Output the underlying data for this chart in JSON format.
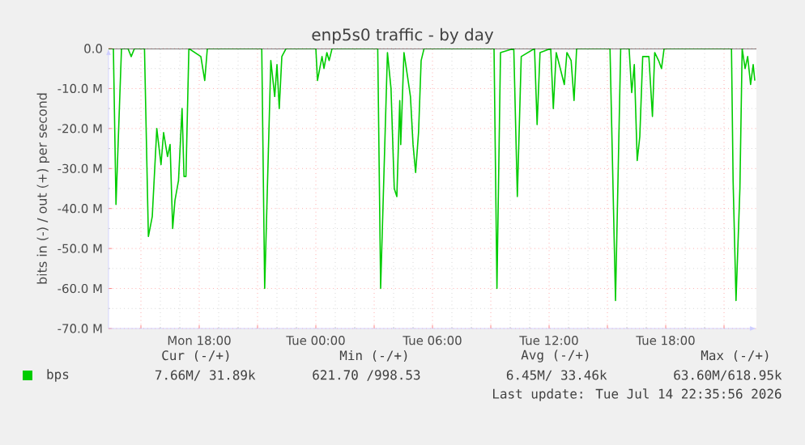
{
  "chart_data": {
    "type": "line",
    "title": "enp5s0 traffic - by day",
    "ylabel": "bits in (-) / out (+) per second",
    "x": [
      "2026-07-13T13:20",
      "2026-07-13T13:35",
      "2026-07-13T13:43",
      "2026-07-13T14:00",
      "2026-07-13T14:20",
      "2026-07-13T14:30",
      "2026-07-13T14:40",
      "2026-07-13T15:11",
      "2026-07-13T15:23",
      "2026-07-13T15:35",
      "2026-07-13T15:49",
      "2026-07-13T16:02",
      "2026-07-13T16:10",
      "2026-07-13T16:22",
      "2026-07-13T16:30",
      "2026-07-13T16:38",
      "2026-07-13T16:45",
      "2026-07-13T16:56",
      "2026-07-13T17:07",
      "2026-07-13T17:13",
      "2026-07-13T17:19",
      "2026-07-13T17:28",
      "2026-07-13T18:05",
      "2026-07-13T18:17",
      "2026-07-13T18:25",
      "2026-07-13T21:13",
      "2026-07-13T21:22",
      "2026-07-13T21:41",
      "2026-07-13T21:53",
      "2026-07-13T22:00",
      "2026-07-13T22:07",
      "2026-07-13T22:15",
      "2026-07-13T22:28",
      "2026-07-14T00:00",
      "2026-07-14T00:05",
      "2026-07-14T00:19",
      "2026-07-14T00:25",
      "2026-07-14T00:34",
      "2026-07-14T00:41",
      "2026-07-14T00:50",
      "2026-07-14T03:11",
      "2026-07-14T03:20",
      "2026-07-14T03:41",
      "2026-07-14T03:52",
      "2026-07-14T04:02",
      "2026-07-14T04:10",
      "2026-07-14T04:19",
      "2026-07-14T04:22",
      "2026-07-14T04:32",
      "2026-07-14T04:43",
      "2026-07-14T04:52",
      "2026-07-14T05:00",
      "2026-07-14T05:08",
      "2026-07-14T05:17",
      "2026-07-14T05:25",
      "2026-07-14T05:34",
      "2026-07-14T09:10",
      "2026-07-14T09:19",
      "2026-07-14T09:30",
      "2026-07-14T10:11",
      "2026-07-14T10:22",
      "2026-07-14T10:34",
      "2026-07-14T11:15",
      "2026-07-14T11:23",
      "2026-07-14T11:32",
      "2026-07-14T12:05",
      "2026-07-14T12:13",
      "2026-07-14T12:22",
      "2026-07-14T12:47",
      "2026-07-14T12:55",
      "2026-07-14T13:08",
      "2026-07-14T13:17",
      "2026-07-14T13:25",
      "2026-07-14T15:08",
      "2026-07-14T15:25",
      "2026-07-14T15:41",
      "2026-07-14T16:07",
      "2026-07-14T16:15",
      "2026-07-14T16:23",
      "2026-07-14T16:32",
      "2026-07-14T16:40",
      "2026-07-14T16:49",
      "2026-07-14T17:08",
      "2026-07-14T17:19",
      "2026-07-14T17:26",
      "2026-07-14T17:38",
      "2026-07-14T17:47",
      "2026-07-14T17:55",
      "2026-07-14T21:23",
      "2026-07-14T21:28",
      "2026-07-14T21:37",
      "2026-07-14T21:49",
      "2026-07-14T21:56",
      "2026-07-14T22:05",
      "2026-07-14T22:13",
      "2026-07-14T22:22",
      "2026-07-14T22:30",
      "2026-07-14T22:35"
    ],
    "series": [
      {
        "name": "bps",
        "color": "#00cc00",
        "values": [
          0,
          0,
          -39,
          0,
          0,
          -2,
          0,
          0,
          -47,
          -42,
          -20,
          -29,
          -21,
          -27,
          -24,
          -45,
          -38,
          -33,
          -15,
          -32,
          -32,
          0,
          -2,
          -8,
          0,
          0,
          -60,
          -3,
          -12,
          -4,
          -15,
          -2,
          0,
          0,
          -8,
          -2,
          -5,
          -1,
          -3,
          0,
          0,
          -60,
          -1,
          -10,
          -35,
          -37,
          -13,
          -24,
          -1,
          -7,
          -12,
          -24,
          -31,
          -21,
          -3,
          0,
          0,
          -60,
          -1,
          0,
          -37,
          -2,
          0,
          -19,
          -1,
          0,
          -15,
          -1,
          -9,
          -1,
          -3,
          -13,
          0,
          0,
          -63,
          0,
          0,
          -11,
          -4,
          -28,
          -22,
          -2,
          -2,
          -17,
          -1,
          -3,
          -5,
          0,
          0,
          -33,
          -63,
          -35,
          0,
          -5,
          -2,
          -9,
          -4,
          -8
        ]
      }
    ],
    "xlim": [
      "2026-07-13T13:20",
      "2026-07-14T22:40"
    ],
    "xticks": [
      {
        "value": "2026-07-13T15:00",
        "label": null
      },
      {
        "value": "2026-07-13T18:00",
        "label": "Mon 18:00"
      },
      {
        "value": "2026-07-13T21:00",
        "label": null
      },
      {
        "value": "2026-07-14T00:00",
        "label": "Tue 00:00"
      },
      {
        "value": "2026-07-14T03:00",
        "label": null
      },
      {
        "value": "2026-07-14T06:00",
        "label": "Tue 06:00"
      },
      {
        "value": "2026-07-14T09:00",
        "label": null
      },
      {
        "value": "2026-07-14T12:00",
        "label": "Tue 12:00"
      },
      {
        "value": "2026-07-14T15:00",
        "label": null
      },
      {
        "value": "2026-07-14T18:00",
        "label": "Tue 18:00"
      },
      {
        "value": "2026-07-14T21:00",
        "label": null
      }
    ],
    "ylim": [
      -70,
      0
    ],
    "yticks": [
      {
        "value": -70,
        "label": "-70.0 M"
      },
      {
        "value": -60,
        "label": "-60.0 M"
      },
      {
        "value": -50,
        "label": "-50.0 M"
      },
      {
        "value": -40,
        "label": "-40.0 M"
      },
      {
        "value": -30,
        "label": "-30.0 M"
      },
      {
        "value": -20,
        "label": "-20.0 M"
      },
      {
        "value": -10,
        "label": "-10.0 M"
      },
      {
        "value": 0,
        "label": "0.0"
      }
    ],
    "ref_lines": [
      {
        "axis": "y",
        "value": 0,
        "color": "#000000"
      }
    ],
    "grid": true,
    "legend": "bottom",
    "marker": "none",
    "line_style": "solid",
    "annotations": [
      "Cur (-/+)",
      "Min (-/+)",
      "Avg (-/+)",
      "Max (-/+)",
      "7.66M/  31.89k",
      "621.70 /998.53",
      "6.45M/  33.46k",
      "63.60M/618.95k",
      "Last update: Tue Jul 14 22:35:56 2026"
    ]
  }
}
